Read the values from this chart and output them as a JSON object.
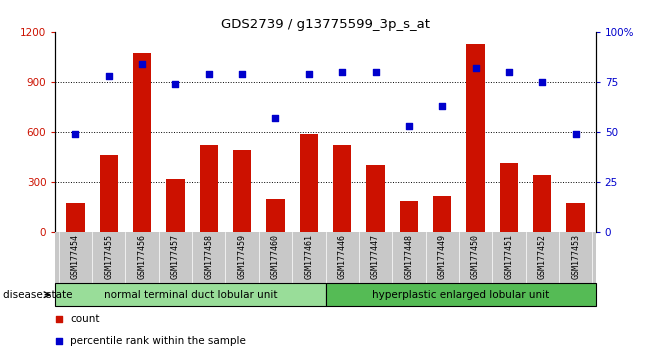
{
  "title": "GDS2739 / g13775599_3p_s_at",
  "categories": [
    "GSM177454",
    "GSM177455",
    "GSM177456",
    "GSM177457",
    "GSM177458",
    "GSM177459",
    "GSM177460",
    "GSM177461",
    "GSM177446",
    "GSM177447",
    "GSM177448",
    "GSM177449",
    "GSM177450",
    "GSM177451",
    "GSM177452",
    "GSM177453"
  ],
  "counts": [
    175,
    460,
    1075,
    320,
    520,
    490,
    195,
    590,
    520,
    400,
    185,
    215,
    1130,
    415,
    340,
    175
  ],
  "percentiles": [
    49,
    78,
    84,
    74,
    79,
    79,
    57,
    79,
    80,
    80,
    53,
    63,
    82,
    80,
    75,
    49
  ],
  "group1_label": "normal terminal duct lobular unit",
  "group2_label": "hyperplastic enlarged lobular unit",
  "bar_color": "#cc1100",
  "dot_color": "#0000cc",
  "left_ylim": [
    0,
    1200
  ],
  "right_ylim": [
    0,
    100
  ],
  "left_yticks": [
    0,
    300,
    600,
    900,
    1200
  ],
  "right_yticks": [
    0,
    25,
    50,
    75,
    100
  ],
  "right_yticklabels": [
    "0",
    "25",
    "50",
    "75",
    "100%"
  ],
  "left_yticklabels": [
    "0",
    "300",
    "600",
    "900",
    "1200"
  ],
  "group1_color": "#99dd99",
  "group2_color": "#55bb55",
  "disease_state_label": "disease state",
  "legend_count": "count",
  "legend_pct": "percentile rank within the sample",
  "grid_vals": [
    300,
    600,
    900
  ],
  "right_top_label": "100%",
  "right_bottom_label": "0"
}
